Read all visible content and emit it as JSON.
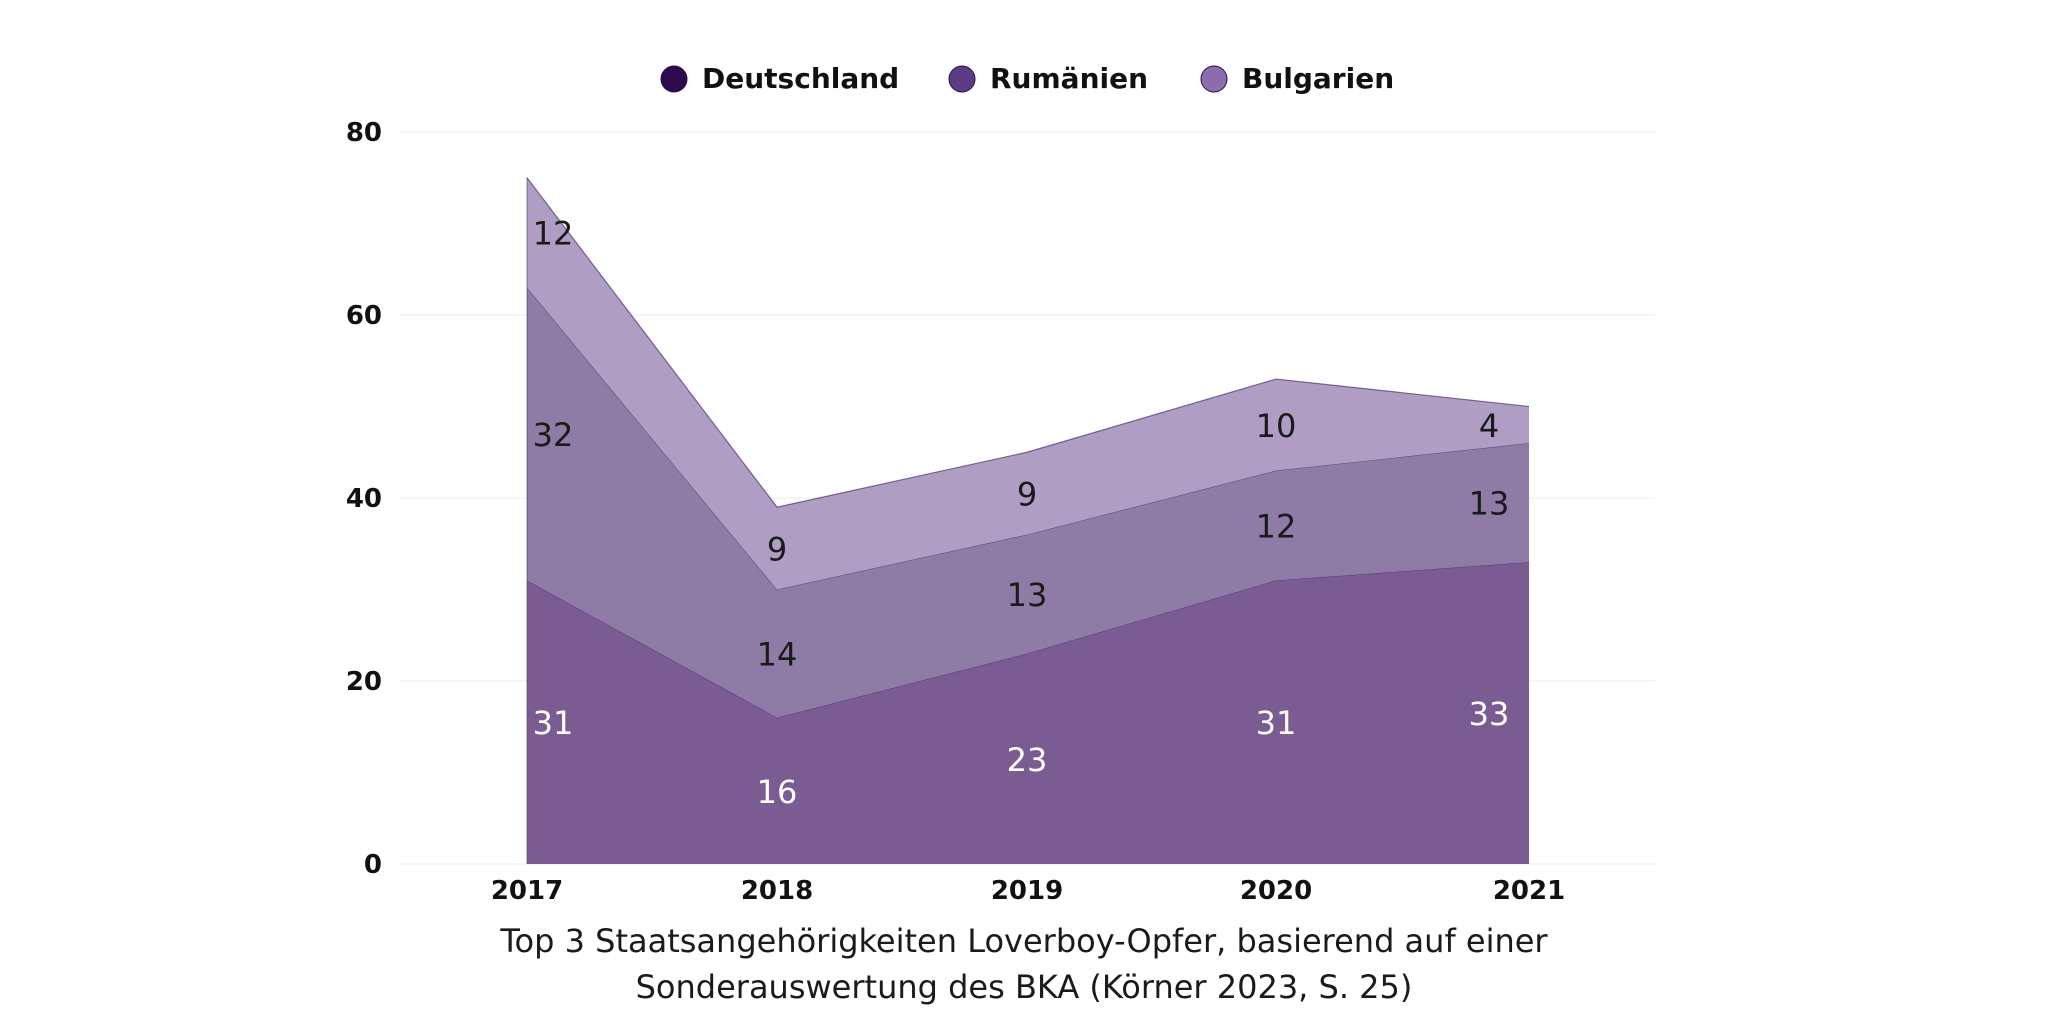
{
  "chart_data": {
    "type": "area",
    "stacked": true,
    "categories": [
      "2017",
      "2018",
      "2019",
      "2020",
      "2021"
    ],
    "series": [
      {
        "name": "Deutschland",
        "values": [
          31,
          16,
          23,
          31,
          33
        ],
        "color": "#7a5c93",
        "legend_color": "#2d0a4e",
        "label_color": "#ffffff"
      },
      {
        "name": "Rumänien",
        "values": [
          32,
          14,
          13,
          12,
          13
        ],
        "color": "#8f7ca6",
        "legend_color": "#5c3d84",
        "label_color": "#1a1a1a"
      },
      {
        "name": "Bulgarien",
        "values": [
          12,
          9,
          9,
          10,
          4
        ],
        "color": "#af9dc3",
        "legend_color": "#8b6dae",
        "label_color": "#1a1a1a"
      }
    ],
    "ylim": [
      0,
      80
    ],
    "yticks": [
      0,
      20,
      40,
      60,
      80
    ],
    "grid": true,
    "legend_position": "top-center",
    "caption_lines": [
      "Top 3 Staatsangehörigkeiten Loverboy-Opfer, basierend auf einer",
      "Sonderauswertung des BKA (Körner 2023, S. 25)"
    ]
  }
}
